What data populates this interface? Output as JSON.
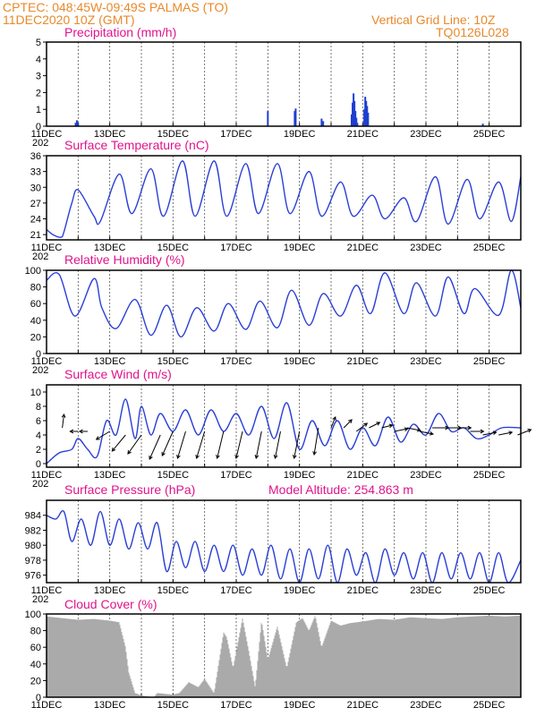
{
  "header": {
    "line1": "CPTEC:   048:45W-09:49S   PALMAS (TO)",
    "line2": "11DEC2020 10Z (GMT)",
    "grid_note": "Vertical Grid Line: 10Z",
    "code": "TQ0126L028"
  },
  "x_ticks": [
    "11DEC",
    "13DEC",
    "15DEC",
    "17DEC",
    "19DEC",
    "21DEC",
    "23DEC",
    "25DEC"
  ],
  "year_stub": "202",
  "chart_data": [
    {
      "id": "precip",
      "type": "bar",
      "title": "Precipitation (mm/h)",
      "ylim": [
        0,
        5
      ],
      "yticks": [
        0,
        1,
        2,
        3,
        4,
        5
      ],
      "color": "#1f3fd0",
      "x": [
        0.92,
        0.96,
        1.0,
        7.0,
        7.85,
        7.88,
        8.7,
        8.75,
        9.65,
        9.68,
        9.71,
        9.74,
        9.77,
        9.8,
        9.83,
        10.05,
        10.08,
        10.11,
        10.14,
        10.17,
        13.8
      ],
      "values": [
        0.2,
        0.35,
        0.2,
        0.9,
        0.9,
        1.05,
        0.45,
        0.3,
        0.7,
        1.4,
        1.95,
        1.5,
        0.9,
        0.5,
        0.2,
        1.0,
        1.75,
        1.5,
        1.2,
        0.8,
        0.15
      ]
    },
    {
      "id": "temp",
      "type": "line",
      "title": "Surface Temperature (nC)",
      "ylim": [
        20,
        36
      ],
      "yticks": [
        21,
        24,
        27,
        30,
        33,
        36
      ],
      "color": "#2a3fd6",
      "x": [
        0,
        0.2,
        0.45,
        0.55,
        0.8,
        1.0,
        1.5,
        1.7,
        2.3,
        2.7,
        3.3,
        3.7,
        4.3,
        4.7,
        5.3,
        5.7,
        6.3,
        6.7,
        7.3,
        7.7,
        8.3,
        8.7,
        9.3,
        9.7,
        10.3,
        10.7,
        11.3,
        11.7,
        12.3,
        12.7,
        13.3,
        13.7,
        14.3,
        14.7,
        15.0
      ],
      "values": [
        22,
        21,
        20.5,
        21.5,
        27,
        29.5,
        24.5,
        23.5,
        32.5,
        25,
        33.5,
        24.5,
        35,
        24.5,
        35,
        24.5,
        34.5,
        25,
        34.5,
        25,
        33,
        24.5,
        31,
        24.5,
        28.5,
        24,
        28,
        23.5,
        32,
        23,
        31.5,
        24,
        31,
        23.5,
        32
      ]
    },
    {
      "id": "rh",
      "type": "line",
      "title": "Relative Humidity (%)",
      "ylim": [
        0,
        100
      ],
      "yticks": [
        0,
        20,
        40,
        60,
        80,
        100
      ],
      "color": "#2a3fd6",
      "x": [
        0,
        0.4,
        0.9,
        1.5,
        1.75,
        2.2,
        2.8,
        3.3,
        3.8,
        4.25,
        4.75,
        5.3,
        5.75,
        6.3,
        6.75,
        7.3,
        7.75,
        8.3,
        8.75,
        9.3,
        9.8,
        10.25,
        10.7,
        11.3,
        11.7,
        12.3,
        12.7,
        13.2,
        13.55,
        14.3,
        14.7,
        15.0
      ],
      "values": [
        88,
        95,
        45,
        90,
        55,
        30,
        65,
        22,
        58,
        20,
        55,
        27,
        60,
        29,
        63,
        31,
        76,
        34,
        72,
        45,
        82,
        48,
        97,
        48,
        85,
        45,
        92,
        48,
        78,
        46,
        100,
        55
      ]
    },
    {
      "id": "wind",
      "type": "line",
      "title": "Surface Wind (m/s)",
      "ylim": [
        -0.5,
        11
      ],
      "yticks": [
        0,
        2,
        4,
        6,
        8,
        10
      ],
      "color": "#2a3fd6",
      "x": [
        0,
        0.4,
        0.8,
        1.0,
        1.3,
        1.6,
        1.9,
        2.2,
        2.5,
        2.8,
        3.0,
        3.3,
        3.6,
        4.0,
        4.4,
        4.8,
        5.2,
        5.6,
        6.0,
        6.4,
        6.8,
        7.2,
        7.6,
        8.0,
        8.4,
        8.8,
        9.2,
        9.6,
        10.0,
        10.4,
        10.8,
        11.2,
        11.6,
        12.0,
        12.4,
        12.8,
        13.2,
        13.6,
        14.0,
        14.4,
        15.0
      ],
      "values": [
        0,
        1.5,
        2,
        3.5,
        2,
        1,
        6,
        4,
        9,
        3.5,
        8,
        4,
        7,
        4.5,
        7.5,
        4,
        7.5,
        4.5,
        7,
        4,
        8,
        3.5,
        8.5,
        2,
        6,
        2.5,
        6,
        2,
        5,
        2.5,
        6.5,
        3,
        5.5,
        4,
        7,
        4.5,
        5,
        3.5,
        4,
        5,
        5
      ]
    },
    {
      "id": "pressure",
      "type": "line",
      "title": "Surface Pressure (hPa)",
      "note": "Model Altitude: 254.863 m",
      "ylim": [
        975,
        986
      ],
      "yticks": [
        976,
        978,
        980,
        982,
        984
      ],
      "color": "#2a3fd6",
      "x": [
        0,
        0.3,
        0.55,
        0.8,
        1.1,
        1.4,
        1.7,
        2.0,
        2.3,
        2.6,
        2.9,
        3.2,
        3.5,
        3.8,
        4.1,
        4.4,
        4.7,
        5.0,
        5.3,
        5.6,
        5.9,
        6.2,
        6.5,
        6.8,
        7.1,
        7.4,
        7.7,
        8.0,
        8.3,
        8.6,
        8.9,
        9.2,
        9.5,
        9.8,
        10.1,
        10.4,
        10.7,
        11.0,
        11.3,
        11.6,
        11.9,
        12.2,
        12.5,
        12.8,
        13.1,
        13.4,
        13.7,
        14.0,
        14.3,
        14.6,
        15.0
      ],
      "values": [
        984,
        983.5,
        984.5,
        980.5,
        983.5,
        980,
        984.5,
        980,
        983.5,
        979.5,
        983,
        979.5,
        983,
        976.5,
        980.5,
        977,
        980.5,
        976.5,
        980,
        976.5,
        980,
        976,
        979.5,
        976,
        980,
        975.5,
        979.5,
        975,
        979.5,
        975.5,
        980,
        975,
        979.5,
        976,
        979,
        975,
        979.5,
        976,
        979,
        975.5,
        979,
        975,
        979,
        975.5,
        979,
        975.5,
        979,
        975,
        979,
        975,
        978
      ]
    },
    {
      "id": "cloud",
      "type": "area",
      "title": "Cloud Cover (%)",
      "ylim": [
        0,
        100
      ],
      "yticks": [
        0,
        20,
        40,
        60,
        80,
        100
      ],
      "color": "#aaaaaa",
      "x": [
        0,
        0.5,
        1.0,
        1.5,
        2.0,
        2.3,
        2.5,
        2.6,
        2.8,
        3.0,
        3.4,
        3.5,
        4.0,
        4.2,
        4.5,
        4.8,
        5.0,
        5.3,
        5.6,
        5.7,
        5.9,
        6.2,
        6.4,
        6.6,
        6.8,
        7.0,
        7.3,
        7.6,
        7.9,
        8.1,
        8.3,
        8.5,
        8.7,
        9.0,
        9.3,
        9.6,
        10.0,
        10.5,
        11.0,
        11.5,
        12.0,
        12.5,
        13.0,
        13.5,
        14.0,
        14.5,
        15.0
      ],
      "values": [
        97,
        95,
        93,
        94,
        92,
        90,
        60,
        30,
        5,
        2,
        0,
        5,
        3,
        5,
        18,
        12,
        22,
        5,
        78,
        72,
        35,
        95,
        55,
        12,
        92,
        45,
        85,
        35,
        90,
        95,
        80,
        98,
        60,
        92,
        86,
        89,
        91,
        94,
        93,
        96,
        95,
        94,
        96,
        97,
        98,
        97,
        98
      ]
    },
    {
      "id": "wind_vectors",
      "type": "scatter",
      "title": "",
      "x": [
        0.5,
        1.0,
        1.3,
        2.0,
        2.5,
        3.0,
        3.6,
        4.0,
        4.4,
        5.0,
        5.6,
        6.2,
        6.8,
        7.4,
        8.0,
        8.6,
        9.0,
        9.4,
        9.8,
        10.2,
        10.6,
        11.0,
        11.4,
        11.8,
        12.2,
        12.6,
        13.0,
        13.4,
        13.8,
        14.3,
        14.9
      ],
      "y": [
        5,
        4.5,
        4.5,
        4.5,
        4,
        4,
        4,
        4.5,
        4.5,
        4.5,
        4.5,
        4.5,
        4.5,
        4.5,
        4.5,
        5,
        5,
        5,
        4.5,
        5,
        5,
        4.5,
        5,
        4.5,
        5,
        5,
        5,
        4.5,
        4,
        4,
        4
      ],
      "u": [
        0.3,
        -1.5,
        -1.5,
        -2.5,
        -2.5,
        -2.5,
        -2,
        -2,
        -1.5,
        -1.5,
        -1.2,
        -1.2,
        -1,
        -1,
        -1,
        -0.8,
        0.8,
        1.5,
        2,
        2,
        2,
        2.5,
        2.5,
        2.5,
        3,
        3,
        2.5,
        2.5,
        2.5,
        2.5,
        2.5
      ],
      "v": [
        2.5,
        0,
        0,
        -1.5,
        -3,
        -3.5,
        -4.5,
        -4.5,
        -5,
        -5,
        -5,
        -5,
        -5,
        -5,
        -5,
        -5,
        2,
        1.5,
        1.5,
        1,
        0.5,
        0.5,
        -0.5,
        -0.5,
        0,
        0,
        0,
        0,
        0.5,
        0.5,
        1
      ]
    }
  ]
}
